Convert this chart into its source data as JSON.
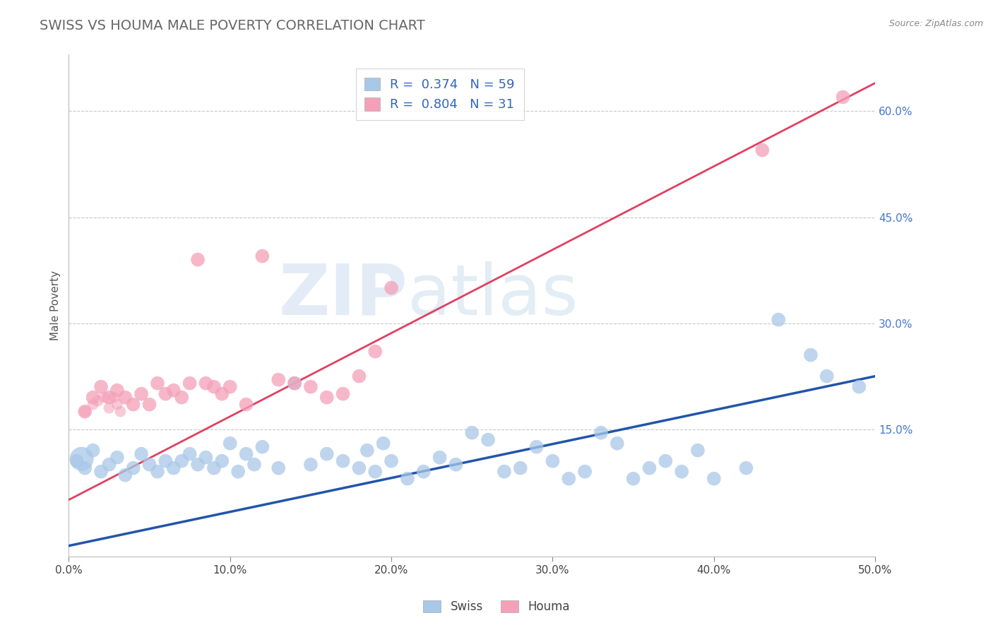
{
  "title": "SWISS VS HOUMA MALE POVERTY CORRELATION CHART",
  "source": "Source: ZipAtlas.com",
  "ylabel": "Male Poverty",
  "xlim": [
    0.0,
    0.5
  ],
  "ylim": [
    -0.03,
    0.68
  ],
  "xticks": [
    0.0,
    0.1,
    0.2,
    0.3,
    0.4,
    0.5
  ],
  "xtick_labels": [
    "0.0%",
    "10.0%",
    "20.0%",
    "30.0%",
    "40.0%",
    "50.0%"
  ],
  "yticks_right": [
    0.15,
    0.3,
    0.45,
    0.6
  ],
  "ytick_right_labels": [
    "15.0%",
    "30.0%",
    "45.0%",
    "60.0%"
  ],
  "grid_color": "#c8c8c8",
  "background_color": "#ffffff",
  "swiss_color": "#a8c8e8",
  "swiss_line_color": "#2255aa",
  "houma_color": "#f4a0b8",
  "houma_line_color": "#e04060",
  "swiss_R": 0.374,
  "swiss_N": 59,
  "houma_R": 0.804,
  "houma_N": 31,
  "swiss_scatter_x": [
    0.005,
    0.01,
    0.015,
    0.02,
    0.025,
    0.03,
    0.035,
    0.04,
    0.045,
    0.05,
    0.055,
    0.06,
    0.065,
    0.07,
    0.075,
    0.08,
    0.085,
    0.09,
    0.095,
    0.1,
    0.105,
    0.11,
    0.115,
    0.12,
    0.13,
    0.14,
    0.15,
    0.16,
    0.17,
    0.18,
    0.185,
    0.19,
    0.195,
    0.2,
    0.21,
    0.22,
    0.23,
    0.24,
    0.25,
    0.26,
    0.27,
    0.28,
    0.29,
    0.3,
    0.31,
    0.32,
    0.33,
    0.34,
    0.35,
    0.36,
    0.37,
    0.38,
    0.39,
    0.4,
    0.42,
    0.44,
    0.46,
    0.47,
    0.49
  ],
  "swiss_scatter_y": [
    0.105,
    0.095,
    0.12,
    0.09,
    0.1,
    0.11,
    0.085,
    0.095,
    0.115,
    0.1,
    0.09,
    0.105,
    0.095,
    0.105,
    0.115,
    0.1,
    0.11,
    0.095,
    0.105,
    0.13,
    0.09,
    0.115,
    0.1,
    0.125,
    0.095,
    0.215,
    0.1,
    0.115,
    0.105,
    0.095,
    0.12,
    0.09,
    0.13,
    0.105,
    0.08,
    0.09,
    0.11,
    0.1,
    0.145,
    0.135,
    0.09,
    0.095,
    0.125,
    0.105,
    0.08,
    0.09,
    0.145,
    0.13,
    0.08,
    0.095,
    0.105,
    0.09,
    0.12,
    0.08,
    0.095,
    0.305,
    0.255,
    0.225,
    0.21
  ],
  "houma_scatter_x": [
    0.01,
    0.015,
    0.02,
    0.025,
    0.03,
    0.035,
    0.04,
    0.045,
    0.05,
    0.055,
    0.06,
    0.065,
    0.07,
    0.075,
    0.08,
    0.085,
    0.09,
    0.095,
    0.1,
    0.11,
    0.12,
    0.13,
    0.14,
    0.15,
    0.16,
    0.17,
    0.18,
    0.19,
    0.2,
    0.43,
    0.48
  ],
  "houma_scatter_y": [
    0.175,
    0.195,
    0.21,
    0.195,
    0.205,
    0.195,
    0.185,
    0.2,
    0.185,
    0.215,
    0.2,
    0.205,
    0.195,
    0.215,
    0.39,
    0.215,
    0.21,
    0.2,
    0.21,
    0.185,
    0.395,
    0.22,
    0.215,
    0.21,
    0.195,
    0.2,
    0.225,
    0.26,
    0.35,
    0.545,
    0.62
  ],
  "swiss_trend_x": [
    0.0,
    0.5
  ],
  "swiss_trend_y": [
    -0.015,
    0.225
  ],
  "houma_trend_x": [
    0.0,
    0.5
  ],
  "houma_trend_y": [
    0.05,
    0.64
  ],
  "watermark_zip": "ZIP",
  "watermark_atlas": "atlas",
  "title_fontsize": 14,
  "axis_label_fontsize": 11,
  "tick_fontsize": 11,
  "legend_fontsize": 13
}
